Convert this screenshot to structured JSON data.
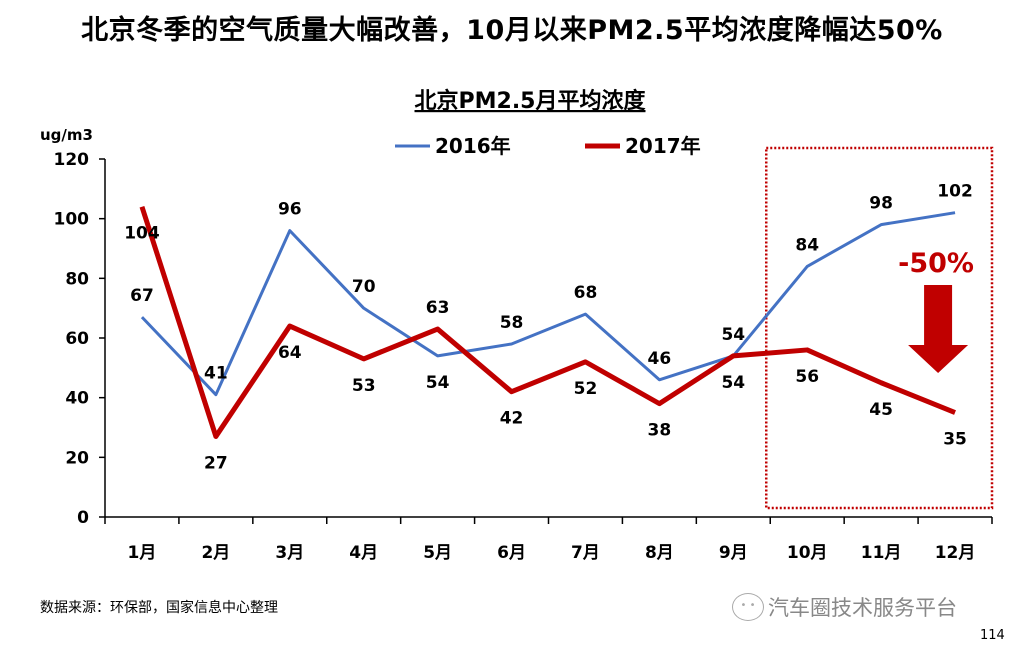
{
  "headline": "北京冬季的空气质量大幅改善，10月以来PM2.5平均浓度降幅达50%",
  "source": "数据来源：环保部，国家信息中心整理",
  "watermark": "汽车圈技术服务平台",
  "page_number": "114",
  "chart_data": {
    "type": "line",
    "title": "北京PM2.5月平均浓度",
    "ylabel": "ug/m3",
    "xlabel": "",
    "ylim": [
      0,
      120
    ],
    "yticks": [
      0,
      20,
      40,
      60,
      80,
      100,
      120
    ],
    "categories": [
      "1月",
      "2月",
      "3月",
      "4月",
      "5月",
      "6月",
      "7月",
      "8月",
      "9月",
      "10月",
      "11月",
      "12月"
    ],
    "series": [
      {
        "name": "2016年",
        "color": "#4472c4",
        "values": [
          67,
          41,
          96,
          70,
          54,
          58,
          68,
          46,
          54,
          84,
          98,
          102
        ],
        "label_side": [
          "above",
          "above",
          "above",
          "above",
          "below",
          "above",
          "above",
          "above",
          "above",
          "above",
          "above",
          "above"
        ]
      },
      {
        "name": "2017年",
        "color": "#c00000",
        "values": [
          104,
          27,
          64,
          53,
          63,
          42,
          52,
          38,
          54,
          56,
          45,
          35
        ],
        "label_side": [
          "below",
          "below",
          "below",
          "below",
          "above",
          "below",
          "below",
          "below",
          "below",
          "below",
          "below",
          "below"
        ]
      }
    ],
    "legend_position": "top",
    "highlight": {
      "from_category": "10月",
      "to_category": "12月",
      "annotation": "-50%",
      "color": "#c00000"
    }
  }
}
